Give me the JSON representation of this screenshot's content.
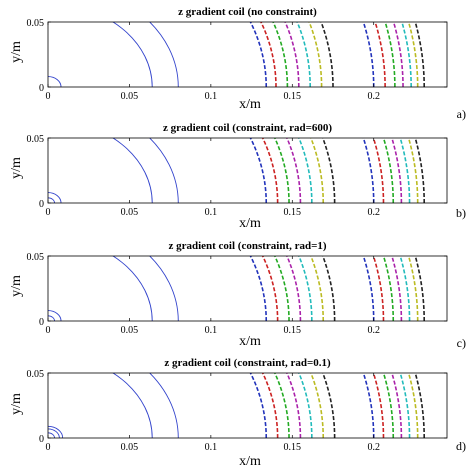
{
  "chart_data": [
    {
      "type": "line",
      "title": "z gradient coil (no constraint)",
      "panel_label": "a)",
      "xlabel": "x/m",
      "ylabel": "y/m",
      "xlim": [
        0,
        0.245
      ],
      "ylim": [
        0,
        0.05
      ],
      "xticks": [
        "0",
        "0.05",
        "0.1",
        "0.15",
        "0.2"
      ],
      "yticks": [
        "0",
        "0.05"
      ],
      "xtick_values": [
        0,
        0.05,
        0.1,
        0.15,
        0.2
      ],
      "ytick_values": [
        0,
        0.05
      ],
      "grid": false,
      "solid_contours": {
        "color": "#3344cc",
        "radii": [
          0.008,
          0.064,
          0.08
        ]
      },
      "dashed_contours": {
        "colors": [
          "#2233bb",
          "#cc2222",
          "#22aa22",
          "#aa22aa",
          "#22bbbb",
          "#bbbb22",
          "#222222"
        ],
        "radii": [
          0.134,
          0.14,
          0.147,
          0.154,
          0.161,
          0.168,
          0.175,
          0.2,
          0.207,
          0.213,
          0.218,
          0.223,
          0.227,
          0.231
        ]
      }
    },
    {
      "type": "line",
      "title": "z gradient coil (constraint, rad=600)",
      "panel_label": "b)",
      "xlabel": "x/m",
      "ylabel": "y/m",
      "xlim": [
        0,
        0.245
      ],
      "ylim": [
        0,
        0.05
      ],
      "xticks": [
        "0",
        "0.05",
        "0.1",
        "0.15",
        "0.2"
      ],
      "yticks": [
        "0",
        "0.05"
      ],
      "xtick_values": [
        0,
        0.05,
        0.1,
        0.15,
        0.2
      ],
      "ytick_values": [
        0,
        0.05
      ],
      "grid": false,
      "solid_contours": {
        "color": "#3344cc",
        "radii": [
          0.004,
          0.008,
          0.064,
          0.08
        ]
      },
      "dashed_contours": {
        "colors": [
          "#2233bb",
          "#cc2222",
          "#22aa22",
          "#aa22aa",
          "#22bbbb",
          "#bbbb22",
          "#222222"
        ],
        "radii": [
          0.134,
          0.141,
          0.148,
          0.155,
          0.162,
          0.169,
          0.176,
          0.2,
          0.206,
          0.212,
          0.217,
          0.222,
          0.227,
          0.231
        ]
      }
    },
    {
      "type": "line",
      "title": "z gradient coil (constraint, rad=1)",
      "panel_label": "c)",
      "xlabel": "x/m",
      "ylabel": "y/m",
      "xlim": [
        0,
        0.245
      ],
      "ylim": [
        0,
        0.05
      ],
      "xticks": [
        "0",
        "0.05",
        "0.1",
        "0.15",
        "0.2"
      ],
      "yticks": [
        "0",
        "0.05"
      ],
      "xtick_values": [
        0,
        0.05,
        0.1,
        0.15,
        0.2
      ],
      "ytick_values": [
        0,
        0.05
      ],
      "grid": false,
      "solid_contours": {
        "color": "#3344cc",
        "radii": [
          0.004,
          0.008,
          0.064,
          0.08
        ]
      },
      "dashed_contours": {
        "colors": [
          "#2233bb",
          "#cc2222",
          "#22aa22",
          "#aa22aa",
          "#22bbbb",
          "#bbbb22",
          "#222222"
        ],
        "radii": [
          0.134,
          0.141,
          0.148,
          0.155,
          0.162,
          0.169,
          0.176,
          0.2,
          0.206,
          0.212,
          0.217,
          0.222,
          0.227,
          0.231
        ]
      }
    },
    {
      "type": "line",
      "title": "z gradient coil (constraint, rad=0.1)",
      "panel_label": "d)",
      "xlabel": "x/m",
      "ylabel": "y/m",
      "xlim": [
        0,
        0.245
      ],
      "ylim": [
        0,
        0.05
      ],
      "xticks": [
        "0",
        "0.05",
        "0.1",
        "0.15",
        "0.2"
      ],
      "yticks": [
        "0",
        "0.05"
      ],
      "xtick_values": [
        0,
        0.05,
        0.1,
        0.15,
        0.2
      ],
      "ytick_values": [
        0,
        0.05
      ],
      "grid": false,
      "solid_contours": {
        "color": "#3344cc",
        "radii": [
          0.004,
          0.007,
          0.009,
          0.064,
          0.08
        ]
      },
      "dashed_contours": {
        "colors": [
          "#2233bb",
          "#cc2222",
          "#22aa22",
          "#aa22aa",
          "#22bbbb",
          "#bbbb22",
          "#222222"
        ],
        "radii": [
          0.134,
          0.141,
          0.148,
          0.155,
          0.162,
          0.169,
          0.176,
          0.2,
          0.206,
          0.212,
          0.217,
          0.222,
          0.227,
          0.231
        ]
      }
    }
  ]
}
